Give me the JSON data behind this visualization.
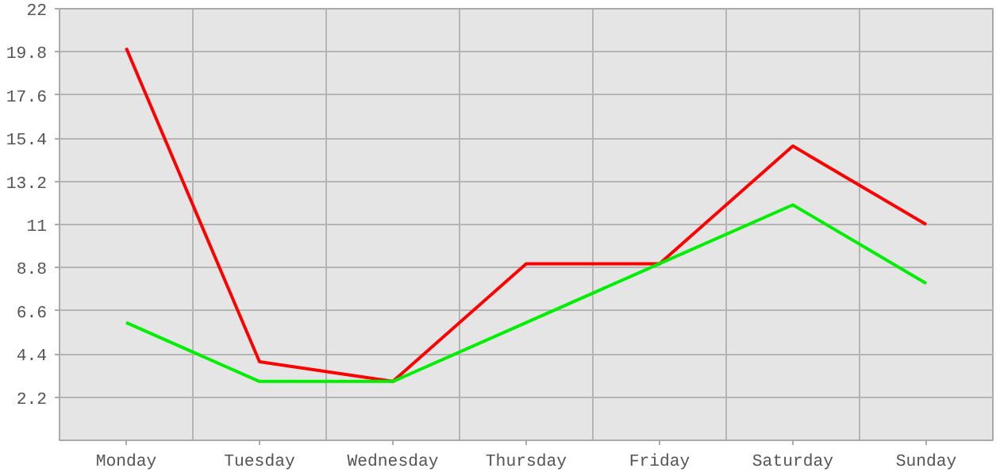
{
  "chart_data": {
    "type": "line",
    "categories": [
      "Monday",
      "Tuesday",
      "Wednesday",
      "Thursday",
      "Friday",
      "Saturday",
      "Sunday"
    ],
    "series": [
      {
        "color": "#ff0000",
        "values": [
          20,
          4,
          3,
          9,
          9,
          15,
          11
        ]
      },
      {
        "color": "#00ee00",
        "values": [
          6,
          3,
          3,
          6,
          9,
          12,
          8
        ]
      }
    ],
    "ylim": [
      0,
      22
    ],
    "yticks": [
      2.2,
      4.4,
      6.6,
      8.8,
      11,
      13.2,
      15.4,
      17.6,
      19.8,
      22
    ],
    "grid": true,
    "marker": "none",
    "line_style": "solid"
  }
}
